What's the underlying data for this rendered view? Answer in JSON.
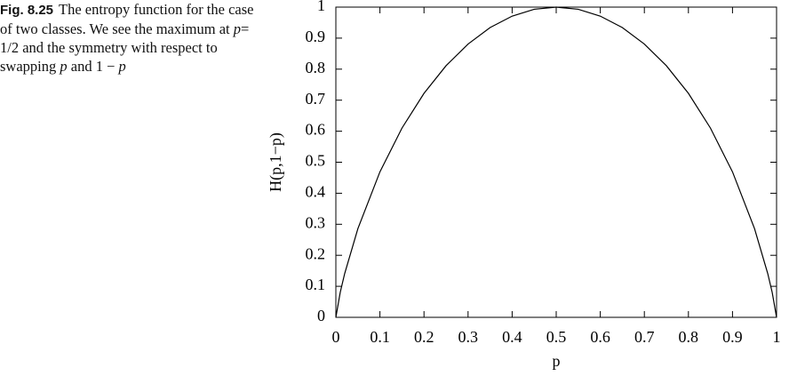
{
  "caption": {
    "label": "Fig. 8.25",
    "segments": [
      {
        "text": "The entropy function for the case of two classes. We see the maximum at ",
        "italic": false
      },
      {
        "text": "p",
        "italic": true
      },
      {
        "text": "= 1/2 and the symmetry with respect to swapping ",
        "italic": false
      },
      {
        "text": "p",
        "italic": true
      },
      {
        "text": " and 1 − ",
        "italic": false
      },
      {
        "text": "p",
        "italic": true
      }
    ]
  },
  "chart_data": {
    "type": "line",
    "x_label": "p",
    "y_label": "H(p,1−p)",
    "x": [
      0,
      0.01,
      0.02,
      0.05,
      0.1,
      0.15,
      0.2,
      0.25,
      0.3,
      0.35,
      0.4,
      0.45,
      0.5,
      0.55,
      0.6,
      0.65,
      0.7,
      0.75,
      0.8,
      0.85,
      0.9,
      0.95,
      0.98,
      0.99,
      1
    ],
    "values": [
      0,
      0.081,
      0.141,
      0.286,
      0.469,
      0.61,
      0.722,
      0.811,
      0.881,
      0.934,
      0.971,
      0.993,
      1,
      0.993,
      0.971,
      0.934,
      0.881,
      0.811,
      0.722,
      0.61,
      0.469,
      0.286,
      0.141,
      0.081,
      0
    ],
    "color": "#000000",
    "xlim": [
      0,
      1
    ],
    "ylim": [
      0,
      1
    ],
    "xticks": [
      0,
      0.1,
      0.2,
      0.3,
      0.4,
      0.5,
      0.6,
      0.7,
      0.8,
      0.9,
      1
    ],
    "yticks": [
      0,
      0.1,
      0.2,
      0.3,
      0.4,
      0.5,
      0.6,
      0.7,
      0.8,
      0.9,
      1
    ]
  }
}
